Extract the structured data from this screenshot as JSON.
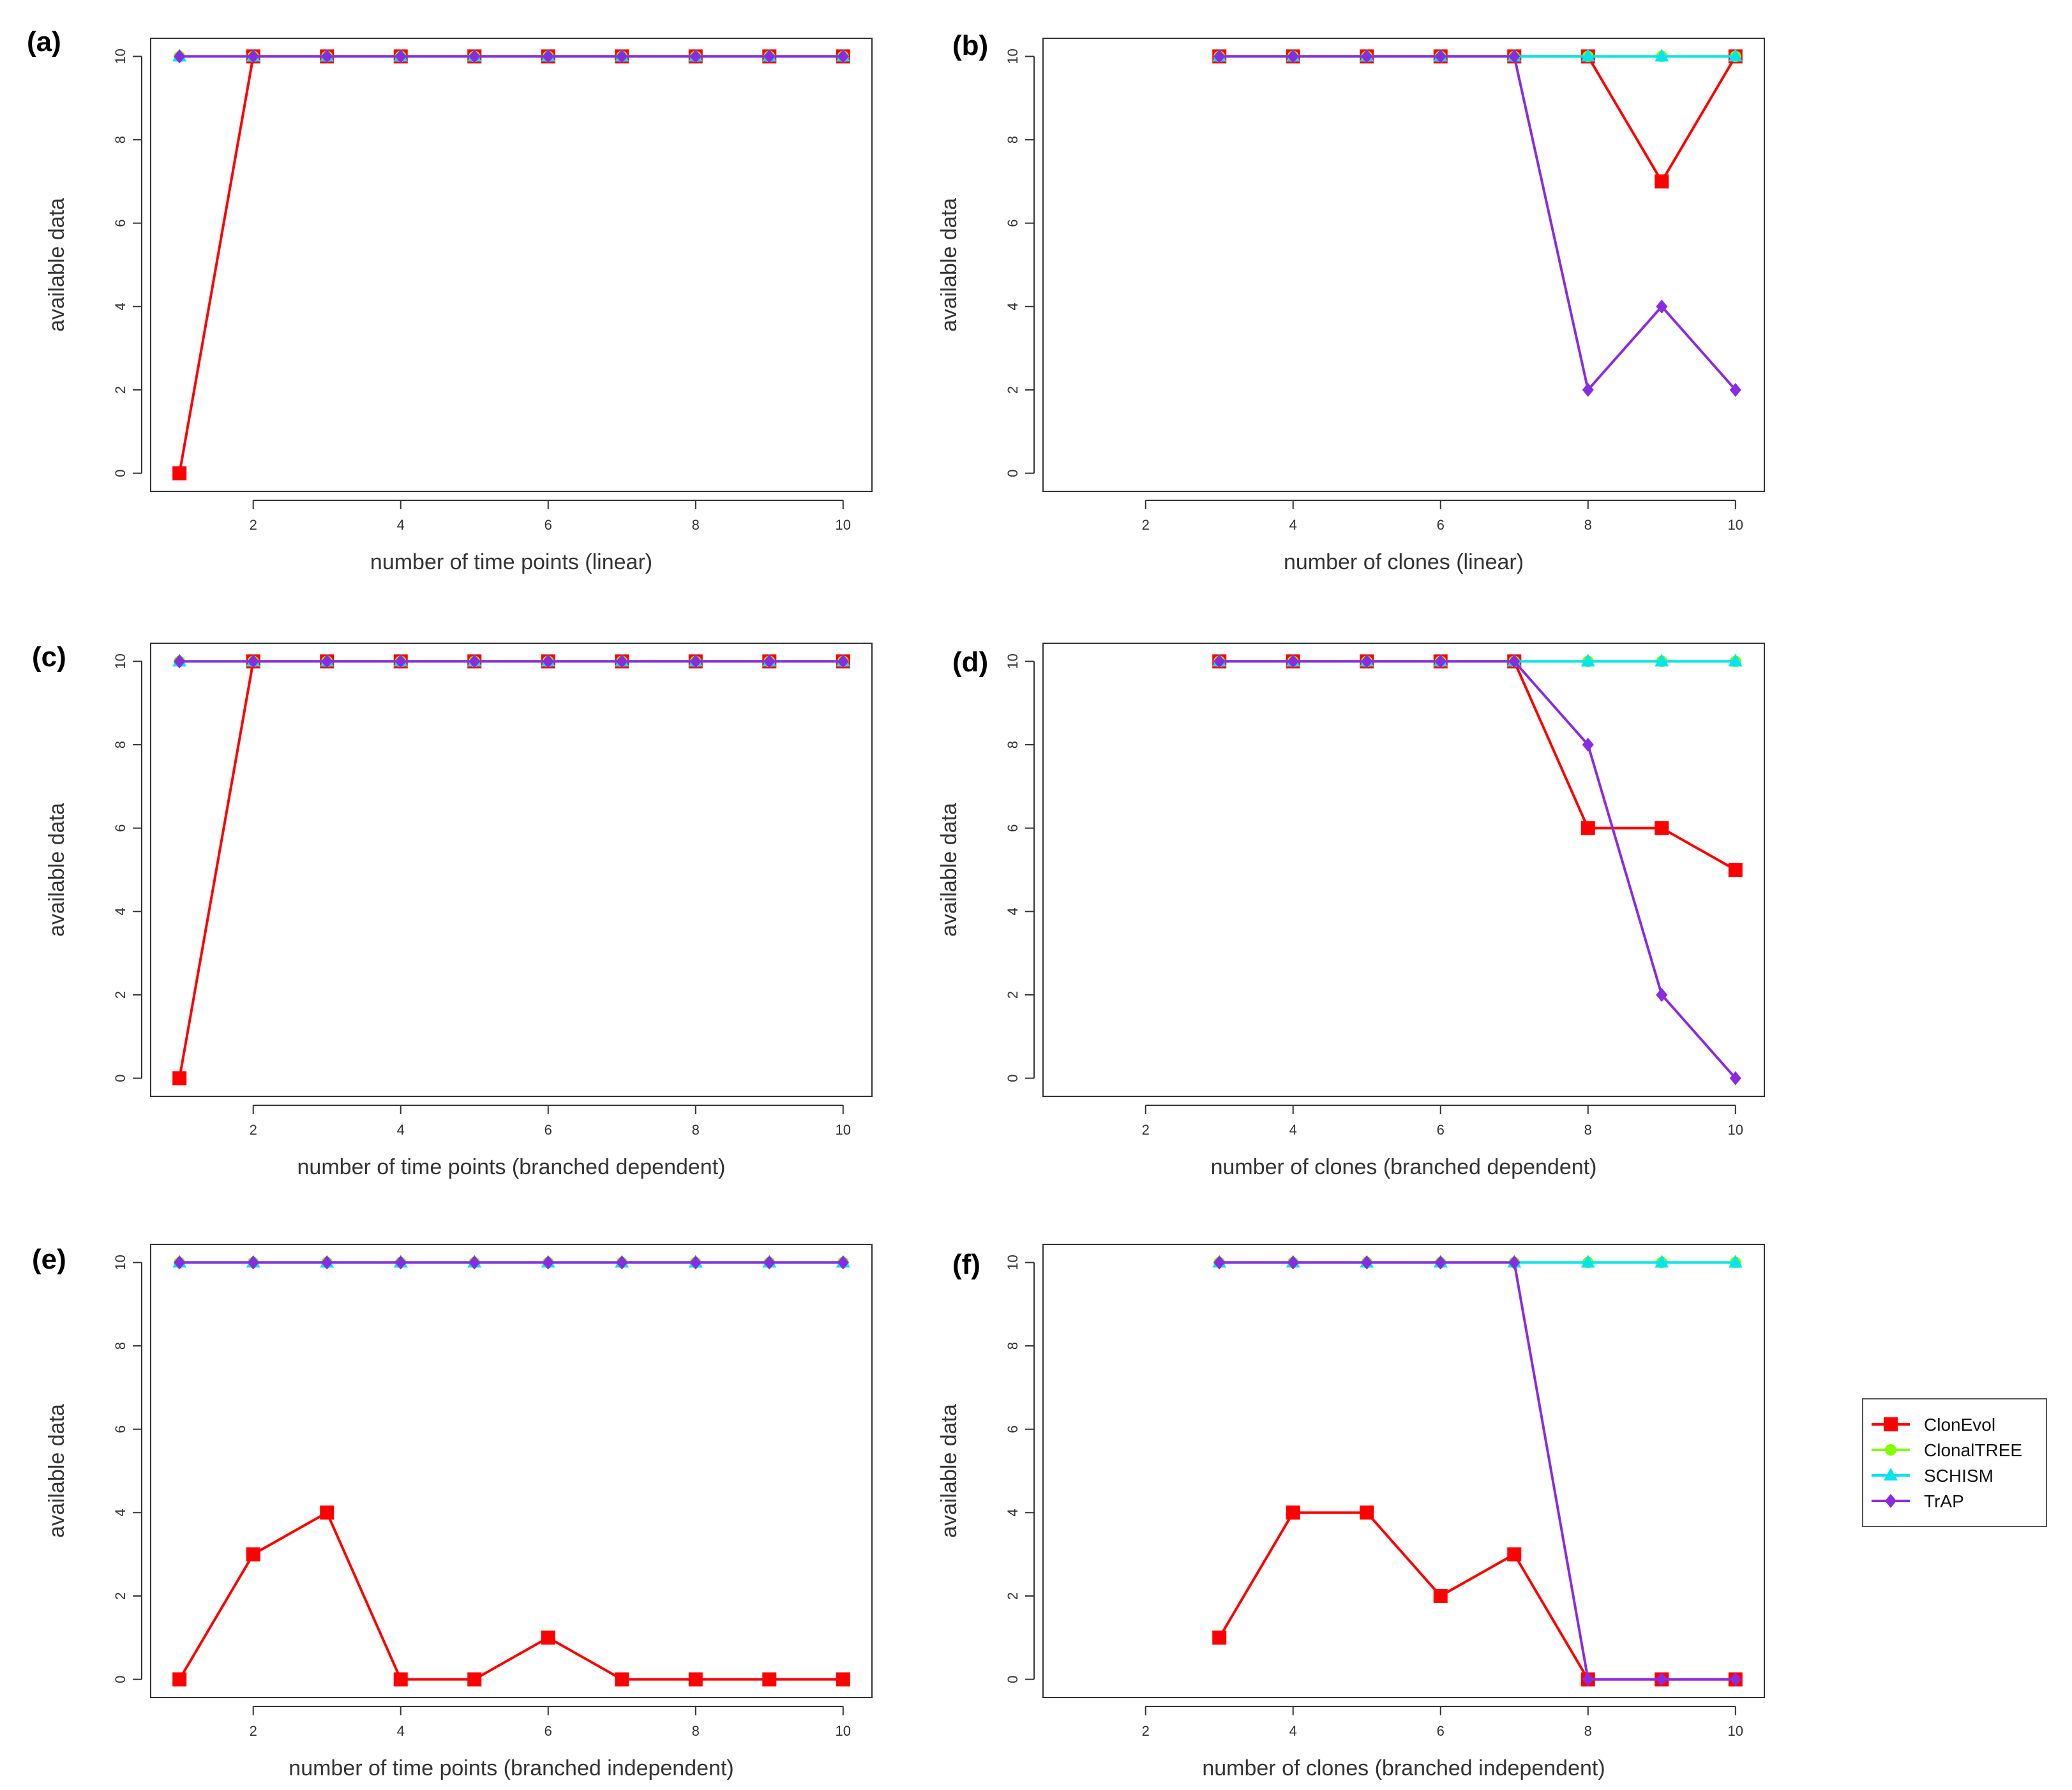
{
  "chart_data": [
    {
      "type": "line",
      "panel_label": "(a)",
      "xlabel": "number of time points (linear)",
      "ylabel": "available data",
      "xlim": [
        1,
        10
      ],
      "ylim": [
        0,
        10
      ],
      "xticks": [
        "2",
        "4",
        "6",
        "8",
        "10"
      ],
      "yticks": [
        "0",
        "2",
        "4",
        "6",
        "8",
        "10"
      ],
      "series": [
        {
          "name": "ClonEvol",
          "x": [
            1,
            2,
            3,
            4,
            5,
            6,
            7,
            8,
            9,
            10
          ],
          "values": [
            0,
            10,
            10,
            10,
            10,
            10,
            10,
            10,
            10,
            10
          ]
        },
        {
          "name": "ClonalTREE",
          "x": [
            1,
            2,
            3,
            4,
            5,
            6,
            7,
            8,
            9,
            10
          ],
          "values": [
            10,
            10,
            10,
            10,
            10,
            10,
            10,
            10,
            10,
            10
          ]
        },
        {
          "name": "SCHISM",
          "x": [
            1,
            2,
            3,
            4,
            5,
            6,
            7,
            8,
            9,
            10
          ],
          "values": [
            10,
            10,
            10,
            10,
            10,
            10,
            10,
            10,
            10,
            10
          ]
        },
        {
          "name": "TrAP",
          "x": [
            1,
            2,
            3,
            4,
            5,
            6,
            7,
            8,
            9,
            10
          ],
          "values": [
            10,
            10,
            10,
            10,
            10,
            10,
            10,
            10,
            10,
            10
          ]
        }
      ]
    },
    {
      "type": "line",
      "panel_label": "(b)",
      "xlabel": "number of clones (linear)",
      "ylabel": "available data",
      "xlim": [
        1,
        10
      ],
      "ylim": [
        0,
        10
      ],
      "xticks": [
        "2",
        "4",
        "6",
        "8",
        "10"
      ],
      "yticks": [
        "0",
        "2",
        "4",
        "6",
        "8",
        "10"
      ],
      "series": [
        {
          "name": "ClonEvol",
          "x": [
            3,
            4,
            5,
            6,
            7,
            8,
            9,
            10
          ],
          "values": [
            10,
            10,
            10,
            10,
            10,
            10,
            7,
            10
          ]
        },
        {
          "name": "ClonalTREE",
          "x": [
            3,
            4,
            5,
            6,
            7,
            8,
            9,
            10
          ],
          "values": [
            10,
            10,
            10,
            10,
            10,
            10,
            10,
            10
          ]
        },
        {
          "name": "SCHISM",
          "x": [
            3,
            4,
            5,
            6,
            7,
            8,
            9,
            10
          ],
          "values": [
            10,
            10,
            10,
            10,
            10,
            10,
            10,
            10
          ]
        },
        {
          "name": "TrAP",
          "x": [
            3,
            4,
            5,
            6,
            7,
            8,
            9,
            10
          ],
          "values": [
            10,
            10,
            10,
            10,
            10,
            2,
            4,
            2
          ]
        }
      ]
    },
    {
      "type": "line",
      "panel_label": "(c)",
      "xlabel": "number of time points (branched dependent)",
      "ylabel": "available data",
      "xlim": [
        1,
        10
      ],
      "ylim": [
        0,
        10
      ],
      "xticks": [
        "2",
        "4",
        "6",
        "8",
        "10"
      ],
      "yticks": [
        "0",
        "2",
        "4",
        "6",
        "8",
        "10"
      ],
      "series": [
        {
          "name": "ClonEvol",
          "x": [
            1,
            2,
            3,
            4,
            5,
            6,
            7,
            8,
            9,
            10
          ],
          "values": [
            0,
            10,
            10,
            10,
            10,
            10,
            10,
            10,
            10,
            10
          ]
        },
        {
          "name": "ClonalTREE",
          "x": [
            1,
            2,
            3,
            4,
            5,
            6,
            7,
            8,
            9,
            10
          ],
          "values": [
            10,
            10,
            10,
            10,
            10,
            10,
            10,
            10,
            10,
            10
          ]
        },
        {
          "name": "SCHISM",
          "x": [
            1,
            2,
            3,
            4,
            5,
            6,
            7,
            8,
            9,
            10
          ],
          "values": [
            10,
            10,
            10,
            10,
            10,
            10,
            10,
            10,
            10,
            10
          ]
        },
        {
          "name": "TrAP",
          "x": [
            1,
            2,
            3,
            4,
            5,
            6,
            7,
            8,
            9,
            10
          ],
          "values": [
            10,
            10,
            10,
            10,
            10,
            10,
            10,
            10,
            10,
            10
          ]
        }
      ]
    },
    {
      "type": "line",
      "panel_label": "(d)",
      "xlabel": "number of clones (branched dependent)",
      "ylabel": "available data",
      "xlim": [
        1,
        10
      ],
      "ylim": [
        0,
        10
      ],
      "xticks": [
        "2",
        "4",
        "6",
        "8",
        "10"
      ],
      "yticks": [
        "0",
        "2",
        "4",
        "6",
        "8",
        "10"
      ],
      "series": [
        {
          "name": "ClonEvol",
          "x": [
            3,
            4,
            5,
            6,
            7,
            8,
            9,
            10
          ],
          "values": [
            10,
            10,
            10,
            10,
            10,
            6,
            6,
            5
          ]
        },
        {
          "name": "ClonalTREE",
          "x": [
            3,
            4,
            5,
            6,
            7,
            8,
            9,
            10
          ],
          "values": [
            10,
            10,
            10,
            10,
            10,
            10,
            10,
            10
          ]
        },
        {
          "name": "SCHISM",
          "x": [
            3,
            4,
            5,
            6,
            7,
            8,
            9,
            10
          ],
          "values": [
            10,
            10,
            10,
            10,
            10,
            10,
            10,
            10
          ]
        },
        {
          "name": "TrAP",
          "x": [
            3,
            4,
            5,
            6,
            7,
            8,
            9,
            10
          ],
          "values": [
            10,
            10,
            10,
            10,
            10,
            8,
            2,
            0
          ]
        }
      ]
    },
    {
      "type": "line",
      "panel_label": "(e)",
      "xlabel": "number of time points (branched independent)",
      "ylabel": "available data",
      "xlim": [
        1,
        10
      ],
      "ylim": [
        0,
        10
      ],
      "xticks": [
        "2",
        "4",
        "6",
        "8",
        "10"
      ],
      "yticks": [
        "0",
        "2",
        "4",
        "6",
        "8",
        "10"
      ],
      "series": [
        {
          "name": "ClonEvol",
          "x": [
            1,
            2,
            3,
            4,
            5,
            6,
            7,
            8,
            9,
            10
          ],
          "values": [
            0,
            3,
            4,
            0,
            0,
            1,
            0,
            0,
            0,
            0
          ]
        },
        {
          "name": "ClonalTREE",
          "x": [
            1,
            2,
            3,
            4,
            5,
            6,
            7,
            8,
            9,
            10
          ],
          "values": [
            10,
            10,
            10,
            10,
            10,
            10,
            10,
            10,
            10,
            10
          ]
        },
        {
          "name": "SCHISM",
          "x": [
            1,
            2,
            3,
            4,
            5,
            6,
            7,
            8,
            9,
            10
          ],
          "values": [
            10,
            10,
            10,
            10,
            10,
            10,
            10,
            10,
            10,
            10
          ]
        },
        {
          "name": "TrAP",
          "x": [
            1,
            2,
            3,
            4,
            5,
            6,
            7,
            8,
            9,
            10
          ],
          "values": [
            10,
            10,
            10,
            10,
            10,
            10,
            10,
            10,
            10,
            10
          ]
        }
      ]
    },
    {
      "type": "line",
      "panel_label": "(f)",
      "xlabel": "number of clones (branched independent)",
      "ylabel": "available data",
      "xlim": [
        1,
        10
      ],
      "ylim": [
        0,
        10
      ],
      "xticks": [
        "2",
        "4",
        "6",
        "8",
        "10"
      ],
      "yticks": [
        "0",
        "2",
        "4",
        "6",
        "8",
        "10"
      ],
      "series": [
        {
          "name": "ClonEvol",
          "x": [
            3,
            4,
            5,
            6,
            7,
            8,
            9,
            10
          ],
          "values": [
            1,
            4,
            4,
            2,
            3,
            0,
            0,
            0
          ]
        },
        {
          "name": "ClonalTREE",
          "x": [
            3,
            4,
            5,
            6,
            7,
            8,
            9,
            10
          ],
          "values": [
            10,
            10,
            10,
            10,
            10,
            10,
            10,
            10
          ]
        },
        {
          "name": "SCHISM",
          "x": [
            3,
            4,
            5,
            6,
            7,
            8,
            9,
            10
          ],
          "values": [
            10,
            10,
            10,
            10,
            10,
            10,
            10,
            10
          ]
        },
        {
          "name": "TrAP",
          "x": [
            3,
            4,
            5,
            6,
            7,
            8,
            9,
            10
          ],
          "values": [
            10,
            10,
            10,
            10,
            10,
            0,
            0,
            0
          ]
        }
      ]
    }
  ],
  "legend": {
    "placement": "right",
    "entries": [
      {
        "name": "ClonEvol",
        "color": "#ff0000",
        "marker": "square"
      },
      {
        "name": "ClonalTREE",
        "color": "#7fff00",
        "marker": "circle"
      },
      {
        "name": "SCHISM",
        "color": "#00e5ee",
        "marker": "triangle"
      },
      {
        "name": "TrAP",
        "color": "#8a2be2",
        "marker": "diamond"
      }
    ]
  },
  "colors": {
    "ClonEvol": "#ff0000",
    "ClonalTREE": "#7fff00",
    "SCHISM": "#00e5ee",
    "TrAP": "#8a2be2",
    "axis": "#333333"
  }
}
